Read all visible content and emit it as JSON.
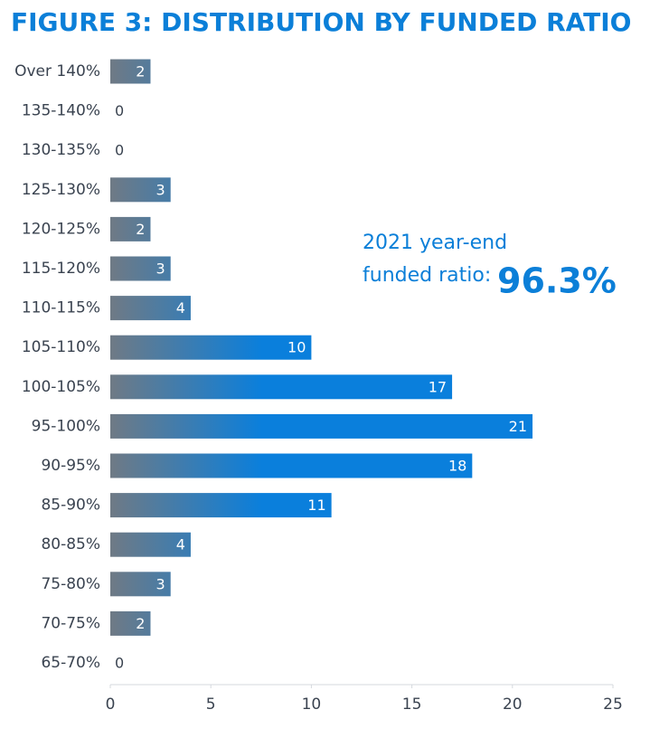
{
  "chart_data": {
    "type": "bar",
    "orientation": "horizontal",
    "title": "FIGURE 3: DISTRIBUTION BY FUNDED RATIO",
    "categories": [
      "Over 140%",
      "135-140%",
      "130-135%",
      "125-130%",
      "120-125%",
      "115-120%",
      "110-115%",
      "105-110%",
      "100-105%",
      "95-100%",
      "90-95%",
      "85-90%",
      "80-85%",
      "75-80%",
      "70-75%",
      "65-70%"
    ],
    "values": [
      2,
      0,
      0,
      3,
      2,
      3,
      4,
      10,
      17,
      21,
      18,
      11,
      4,
      3,
      2,
      0
    ],
    "color": "#0a7fdc",
    "xlim": [
      0,
      25
    ],
    "xticks": [
      0,
      5,
      10,
      15,
      20,
      25
    ],
    "grid": false,
    "annotation": {
      "line1": "2021 year-end",
      "line2": "funded ratio:",
      "value": "96.3%"
    }
  }
}
